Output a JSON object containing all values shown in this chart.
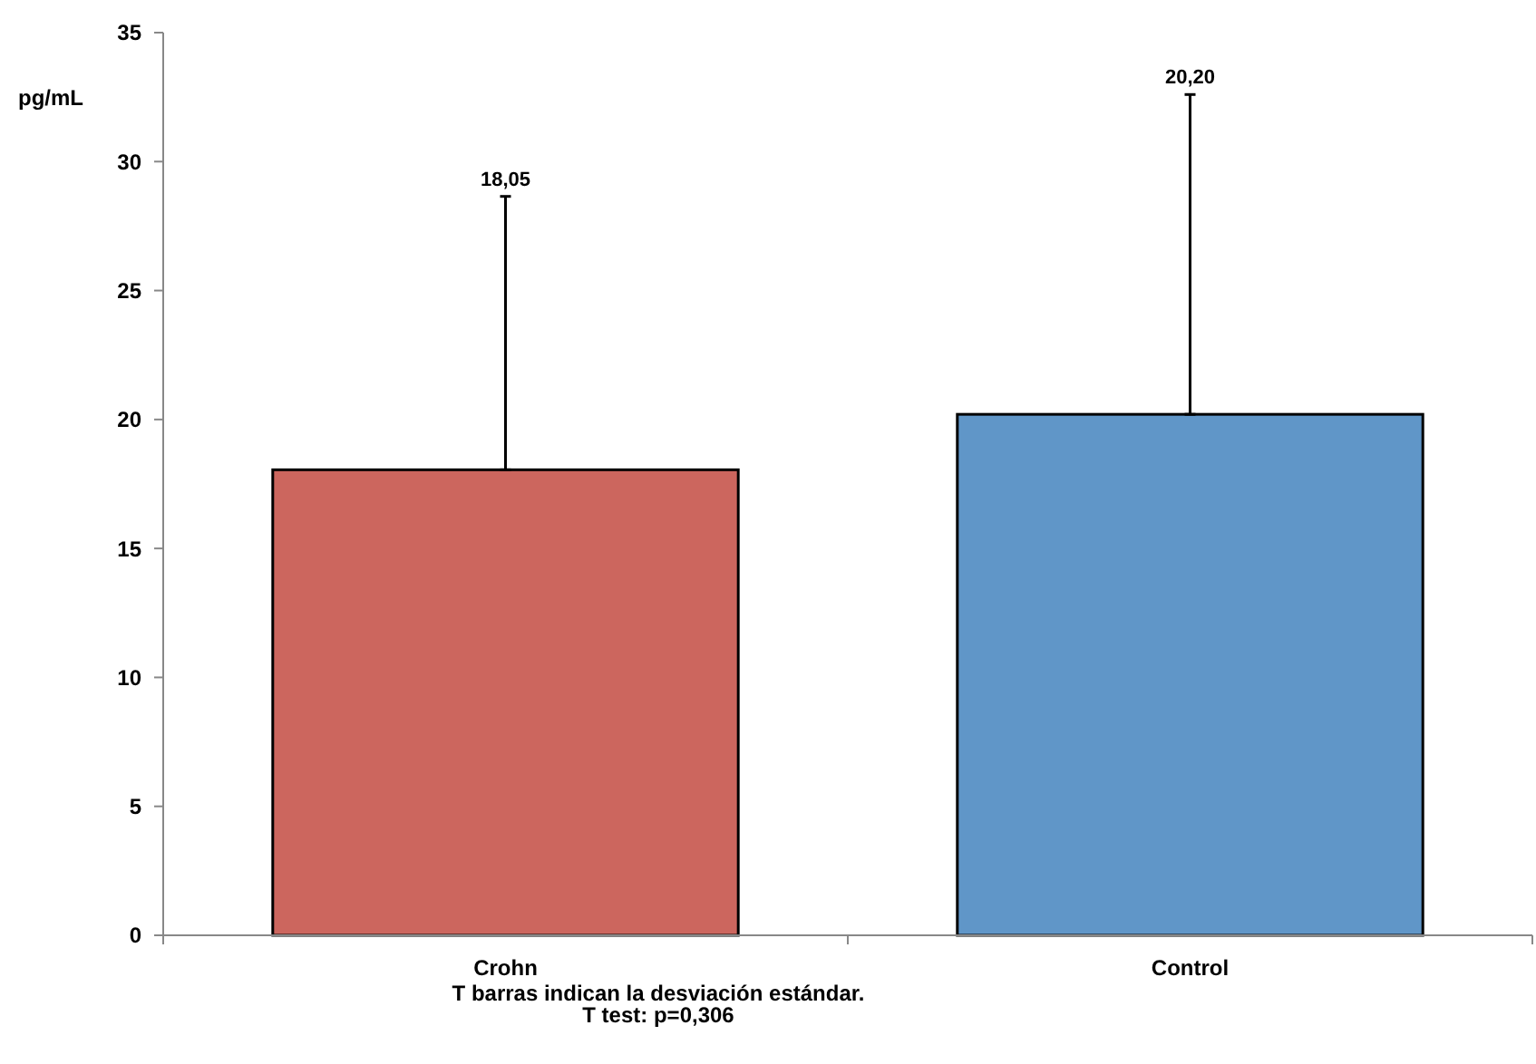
{
  "chart_data": {
    "type": "bar",
    "ylabel": "pg/mL",
    "categories": [
      "Crohn",
      "Control"
    ],
    "values": [
      18.05,
      20.2
    ],
    "colors": [
      "#cc665e",
      "#6096c8"
    ],
    "errors": [
      [
        18.05,
        28.65
      ],
      [
        20.2,
        32.6
      ]
    ],
    "ylim": [
      0,
      35
    ],
    "yticks": [
      0,
      5,
      10,
      15,
      20,
      25,
      30,
      35
    ],
    "grid": false,
    "annotations": [
      {
        "text": "18,05",
        "x": "Crohn",
        "y": 28.65
      },
      {
        "text": "20,20",
        "x": "Control",
        "y": 32.6
      },
      "T barras indican la desviación estándar.",
      "T test: p=0,306"
    ]
  }
}
